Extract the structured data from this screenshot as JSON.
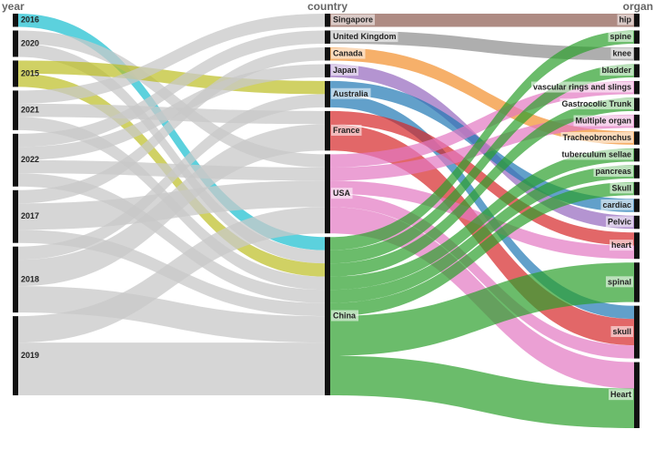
{
  "columns": [
    {
      "title": "year",
      "nodes": [
        {
          "label": "2016",
          "value": 2
        },
        {
          "label": "2020",
          "value": 4
        },
        {
          "label": "2015",
          "value": 4
        },
        {
          "label": "2021",
          "value": 6
        },
        {
          "label": "2022",
          "value": 8
        },
        {
          "label": "2017",
          "value": 8
        },
        {
          "label": "2018",
          "value": 10
        },
        {
          "label": "2019",
          "value": 12
        }
      ]
    },
    {
      "title": "country",
      "nodes": [
        {
          "label": "Singapore",
          "value": 2,
          "color": "#8b5a4f"
        },
        {
          "label": "United Kingdom",
          "value": 2,
          "color": "#8c8c8c"
        },
        {
          "label": "Canada",
          "value": 2,
          "color": "#f28e2b"
        },
        {
          "label": "Japan",
          "value": 2,
          "color": "#9467bd"
        },
        {
          "label": "Australia",
          "value": 4,
          "color": "#1f77b4"
        },
        {
          "label": "France",
          "value": 6,
          "color": "#d62728"
        },
        {
          "label": "USA",
          "value": 12,
          "color": "#e377c2"
        },
        {
          "label": "China",
          "value": 24,
          "color": "#2ca02c"
        }
      ]
    },
    {
      "title": "organ",
      "nodes": [
        {
          "label": "hip",
          "value": 2
        },
        {
          "label": "spine",
          "value": 2
        },
        {
          "label": "knee",
          "value": 2
        },
        {
          "label": "bladder",
          "value": 2
        },
        {
          "label": "vascular rings and slings",
          "value": 2
        },
        {
          "label": "Gastrocolic Trunk",
          "value": 2
        },
        {
          "label": "Multiple organ",
          "value": 2
        },
        {
          "label": "Tracheobronchus",
          "value": 2
        },
        {
          "label": "tuberculum sellae",
          "value": 2
        },
        {
          "label": "pancreas",
          "value": 2
        },
        {
          "label": "Skull",
          "value": 2
        },
        {
          "label": "cardiac",
          "value": 2
        },
        {
          "label": "Pelvic",
          "value": 2
        },
        {
          "label": "heart",
          "value": 4
        },
        {
          "label": "spinal",
          "value": 6
        },
        {
          "label": "skull",
          "value": 8
        },
        {
          "label": "Heart",
          "value": 10
        }
      ]
    }
  ],
  "links": [
    {
      "from": [
        0,
        0
      ],
      "to": [
        1,
        7
      ],
      "value": 2,
      "color": "#17becf"
    },
    {
      "from": [
        0,
        1
      ],
      "to": [
        1,
        6
      ],
      "value": 2,
      "color": "#c8c8c8"
    },
    {
      "from": [
        0,
        1
      ],
      "to": [
        1,
        7
      ],
      "value": 2,
      "color": "#c8c8c8"
    },
    {
      "from": [
        0,
        2
      ],
      "to": [
        1,
        4
      ],
      "value": 2,
      "color": "#bcbd22"
    },
    {
      "from": [
        0,
        2
      ],
      "to": [
        1,
        7
      ],
      "value": 2,
      "color": "#bcbd22"
    },
    {
      "from": [
        0,
        3
      ],
      "to": [
        1,
        0
      ],
      "value": 2,
      "color": "#c8c8c8"
    },
    {
      "from": [
        0,
        3
      ],
      "to": [
        1,
        5
      ],
      "value": 2,
      "color": "#c8c8c8"
    },
    {
      "from": [
        0,
        3
      ],
      "to": [
        1,
        7
      ],
      "value": 2,
      "color": "#c8c8c8"
    },
    {
      "from": [
        0,
        4
      ],
      "to": [
        1,
        1
      ],
      "value": 2,
      "color": "#c8c8c8"
    },
    {
      "from": [
        0,
        4
      ],
      "to": [
        1,
        3
      ],
      "value": 2,
      "color": "#c8c8c8"
    },
    {
      "from": [
        0,
        4
      ],
      "to": [
        1,
        6
      ],
      "value": 2,
      "color": "#c8c8c8"
    },
    {
      "from": [
        0,
        4
      ],
      "to": [
        1,
        7
      ],
      "value": 2,
      "color": "#c8c8c8"
    },
    {
      "from": [
        0,
        5
      ],
      "to": [
        1,
        2
      ],
      "value": 2,
      "color": "#c8c8c8"
    },
    {
      "from": [
        0,
        5
      ],
      "to": [
        1,
        6
      ],
      "value": 4,
      "color": "#c8c8c8"
    },
    {
      "from": [
        0,
        5
      ],
      "to": [
        1,
        7
      ],
      "value": 2,
      "color": "#c8c8c8"
    },
    {
      "from": [
        0,
        6
      ],
      "to": [
        1,
        4
      ],
      "value": 2,
      "color": "#c8c8c8"
    },
    {
      "from": [
        0,
        6
      ],
      "to": [
        1,
        5
      ],
      "value": 4,
      "color": "#c8c8c8"
    },
    {
      "from": [
        0,
        6
      ],
      "to": [
        1,
        7
      ],
      "value": 4,
      "color": "#c8c8c8"
    },
    {
      "from": [
        0,
        7
      ],
      "to": [
        1,
        6
      ],
      "value": 4,
      "color": "#c8c8c8"
    },
    {
      "from": [
        0,
        7
      ],
      "to": [
        1,
        7
      ],
      "value": 8,
      "color": "#c8c8c8"
    },
    {
      "from": [
        1,
        0
      ],
      "to": [
        2,
        0
      ],
      "value": 2,
      "color": "#8b5a4f"
    },
    {
      "from": [
        1,
        1
      ],
      "to": [
        2,
        2
      ],
      "value": 2,
      "color": "#8c8c8c"
    },
    {
      "from": [
        1,
        2
      ],
      "to": [
        2,
        7
      ],
      "value": 2,
      "color": "#f28e2b"
    },
    {
      "from": [
        1,
        3
      ],
      "to": [
        2,
        12
      ],
      "value": 2,
      "color": "#9467bd"
    },
    {
      "from": [
        1,
        4
      ],
      "to": [
        2,
        11
      ],
      "value": 2,
      "color": "#1f77b4"
    },
    {
      "from": [
        1,
        4
      ],
      "to": [
        2,
        15
      ],
      "value": 2,
      "color": "#1f77b4"
    },
    {
      "from": [
        1,
        5
      ],
      "to": [
        2,
        13
      ],
      "value": 2,
      "color": "#d62728"
    },
    {
      "from": [
        1,
        5
      ],
      "to": [
        2,
        15
      ],
      "value": 4,
      "color": "#d62728"
    },
    {
      "from": [
        1,
        6
      ],
      "to": [
        2,
        4
      ],
      "value": 2,
      "color": "#e377c2"
    },
    {
      "from": [
        1,
        6
      ],
      "to": [
        2,
        6
      ],
      "value": 2,
      "color": "#e377c2"
    },
    {
      "from": [
        1,
        6
      ],
      "to": [
        2,
        13
      ],
      "value": 2,
      "color": "#e377c2"
    },
    {
      "from": [
        1,
        6
      ],
      "to": [
        2,
        15
      ],
      "value": 2,
      "color": "#e377c2"
    },
    {
      "from": [
        1,
        6
      ],
      "to": [
        2,
        16
      ],
      "value": 4,
      "color": "#e377c2"
    },
    {
      "from": [
        1,
        7
      ],
      "to": [
        2,
        1
      ],
      "value": 2,
      "color": "#2ca02c"
    },
    {
      "from": [
        1,
        7
      ],
      "to": [
        2,
        3
      ],
      "value": 2,
      "color": "#2ca02c"
    },
    {
      "from": [
        1,
        7
      ],
      "to": [
        2,
        5
      ],
      "value": 2,
      "color": "#2ca02c"
    },
    {
      "from": [
        1,
        7
      ],
      "to": [
        2,
        8
      ],
      "value": 2,
      "color": "#2ca02c"
    },
    {
      "from": [
        1,
        7
      ],
      "to": [
        2,
        9
      ],
      "value": 2,
      "color": "#2ca02c"
    },
    {
      "from": [
        1,
        7
      ],
      "to": [
        2,
        10
      ],
      "value": 2,
      "color": "#2ca02c"
    },
    {
      "from": [
        1,
        7
      ],
      "to": [
        2,
        14
      ],
      "value": 6,
      "color": "#2ca02c"
    },
    {
      "from": [
        1,
        7
      ],
      "to": [
        2,
        16
      ],
      "value": 6,
      "color": "#2ca02c"
    }
  ]
}
